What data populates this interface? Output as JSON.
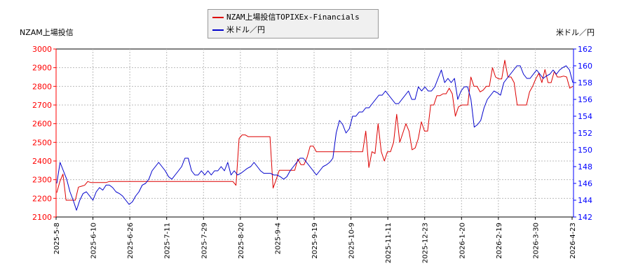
{
  "chart_data": {
    "type": "line",
    "legend": {
      "placement": "top-center",
      "entries": [
        "NZAM上場投信TOPIXEx-Financials",
        "米ドル／円"
      ]
    },
    "left_axis": {
      "label": "NZAM上場投信",
      "ylim": [
        2100,
        3000
      ],
      "ticks": [
        2100,
        2200,
        2300,
        2400,
        2500,
        2600,
        2700,
        2800,
        2900,
        3000
      ],
      "color": "#ff0000"
    },
    "right_axis": {
      "label": "米ドル／円",
      "ylim": [
        142,
        162
      ],
      "ticks": [
        142,
        144,
        146,
        148,
        150,
        152,
        154,
        156,
        158,
        160,
        162
      ],
      "color": "#0000ff"
    },
    "x_tick_labels": [
      "2025-5-8",
      "2025-6-10",
      "2025-6-26",
      "2025-7-11",
      "2025-7-29",
      "2025-8-20",
      "2025-9-4",
      "2025-9-19",
      "2025-10-9",
      "2025-11-11",
      "2025-12-23",
      "2026-1-20",
      "2026-2-19",
      "2026-3-30",
      "2026-4-23"
    ],
    "grid": true,
    "series": [
      {
        "name": "NZAM上場投信TOPIXEx-Financials",
        "axis": "left",
        "color": "#dd0000",
        "values": [
          2230,
          2290,
          2330,
          2190,
          2190,
          2190,
          2190,
          2260,
          2265,
          2270,
          2290,
          2285,
          2285,
          2285,
          2285,
          2285,
          2285,
          2290,
          2290,
          2290,
          2290,
          2290,
          2290,
          2290,
          2290,
          2290,
          2290,
          2290,
          2290,
          2290,
          2290,
          2290,
          2290,
          2290,
          2290,
          2290,
          2290,
          2290,
          2290,
          2290,
          2290,
          2290,
          2290,
          2290,
          2290,
          2290,
          2290,
          2290,
          2290,
          2290,
          2290,
          2290,
          2290,
          2290,
          2290,
          2290,
          2290,
          2290,
          2270,
          2520,
          2540,
          2540,
          2530,
          2530,
          2530,
          2530,
          2530,
          2530,
          2530,
          2530,
          2255,
          2300,
          2350,
          2350,
          2350,
          2350,
          2350,
          2350,
          2410,
          2380,
          2380,
          2420,
          2480,
          2480,
          2450,
          2450,
          2450,
          2450,
          2450,
          2450,
          2450,
          2450,
          2450,
          2450,
          2450,
          2450,
          2450,
          2450,
          2450,
          2450,
          2560,
          2365,
          2450,
          2440,
          2600,
          2450,
          2400,
          2450,
          2450,
          2500,
          2650,
          2500,
          2550,
          2600,
          2560,
          2460,
          2470,
          2520,
          2610,
          2560,
          2560,
          2700,
          2700,
          2750,
          2750,
          2760,
          2760,
          2790,
          2760,
          2640,
          2690,
          2700,
          2700,
          2700,
          2850,
          2800,
          2800,
          2770,
          2780,
          2800,
          2800,
          2900,
          2850,
          2840,
          2840,
          2940,
          2850,
          2850,
          2820,
          2700,
          2700,
          2700,
          2700,
          2770,
          2800,
          2840,
          2870,
          2820,
          2890,
          2820,
          2820,
          2880,
          2850,
          2850,
          2855,
          2850,
          2790,
          2800
        ]
      },
      {
        "name": "米ドル／円",
        "axis": "right",
        "color": "#0000cc",
        "values": [
          146.0,
          148.5,
          147.5,
          146.5,
          145.0,
          144.0,
          142.8,
          144.0,
          144.8,
          145.0,
          144.5,
          144.0,
          145.0,
          145.5,
          145.2,
          145.8,
          145.8,
          145.5,
          145.0,
          144.8,
          144.5,
          144.0,
          143.5,
          143.8,
          144.5,
          145.0,
          145.8,
          146.0,
          146.5,
          147.5,
          148.0,
          148.5,
          148.0,
          147.5,
          146.8,
          146.5,
          147.0,
          147.5,
          148.0,
          149.0,
          149.0,
          147.5,
          147.0,
          147.0,
          147.5,
          147.0,
          147.5,
          147.0,
          147.5,
          147.5,
          148.0,
          147.5,
          148.5,
          147.0,
          147.5,
          147.0,
          147.2,
          147.5,
          147.8,
          148.0,
          148.5,
          148.0,
          147.5,
          147.2,
          147.2,
          147.2,
          147.0,
          147.0,
          146.8,
          146.5,
          146.8,
          147.5,
          148.0,
          148.5,
          149.0,
          149.0,
          148.5,
          148.0,
          147.5,
          147.0,
          147.5,
          148.0,
          148.2,
          148.5,
          149.0,
          152.0,
          153.5,
          153.0,
          152.0,
          152.5,
          154.0,
          154.0,
          154.5,
          154.5,
          155.0,
          155.0,
          155.5,
          156.0,
          156.5,
          156.5,
          157.0,
          156.5,
          156.0,
          155.5,
          155.5,
          156.0,
          156.5,
          157.0,
          156.0,
          156.0,
          157.5,
          157.0,
          157.5,
          157.0,
          157.0,
          157.5,
          158.5,
          159.5,
          158.0,
          158.5,
          158.0,
          158.5,
          156.0,
          157.0,
          157.5,
          157.5,
          156.0,
          152.7,
          153.0,
          153.5,
          155.0,
          156.0,
          156.5,
          157.0,
          156.8,
          156.5,
          158.0,
          158.5,
          159.0,
          159.5,
          160.0,
          160.0,
          159.0,
          158.5,
          158.5,
          159.0,
          159.5,
          159.0,
          158.5,
          158.8,
          159.0,
          159.5,
          159.0,
          159.5,
          159.8,
          160.0,
          159.5,
          158.0
        ]
      }
    ]
  }
}
